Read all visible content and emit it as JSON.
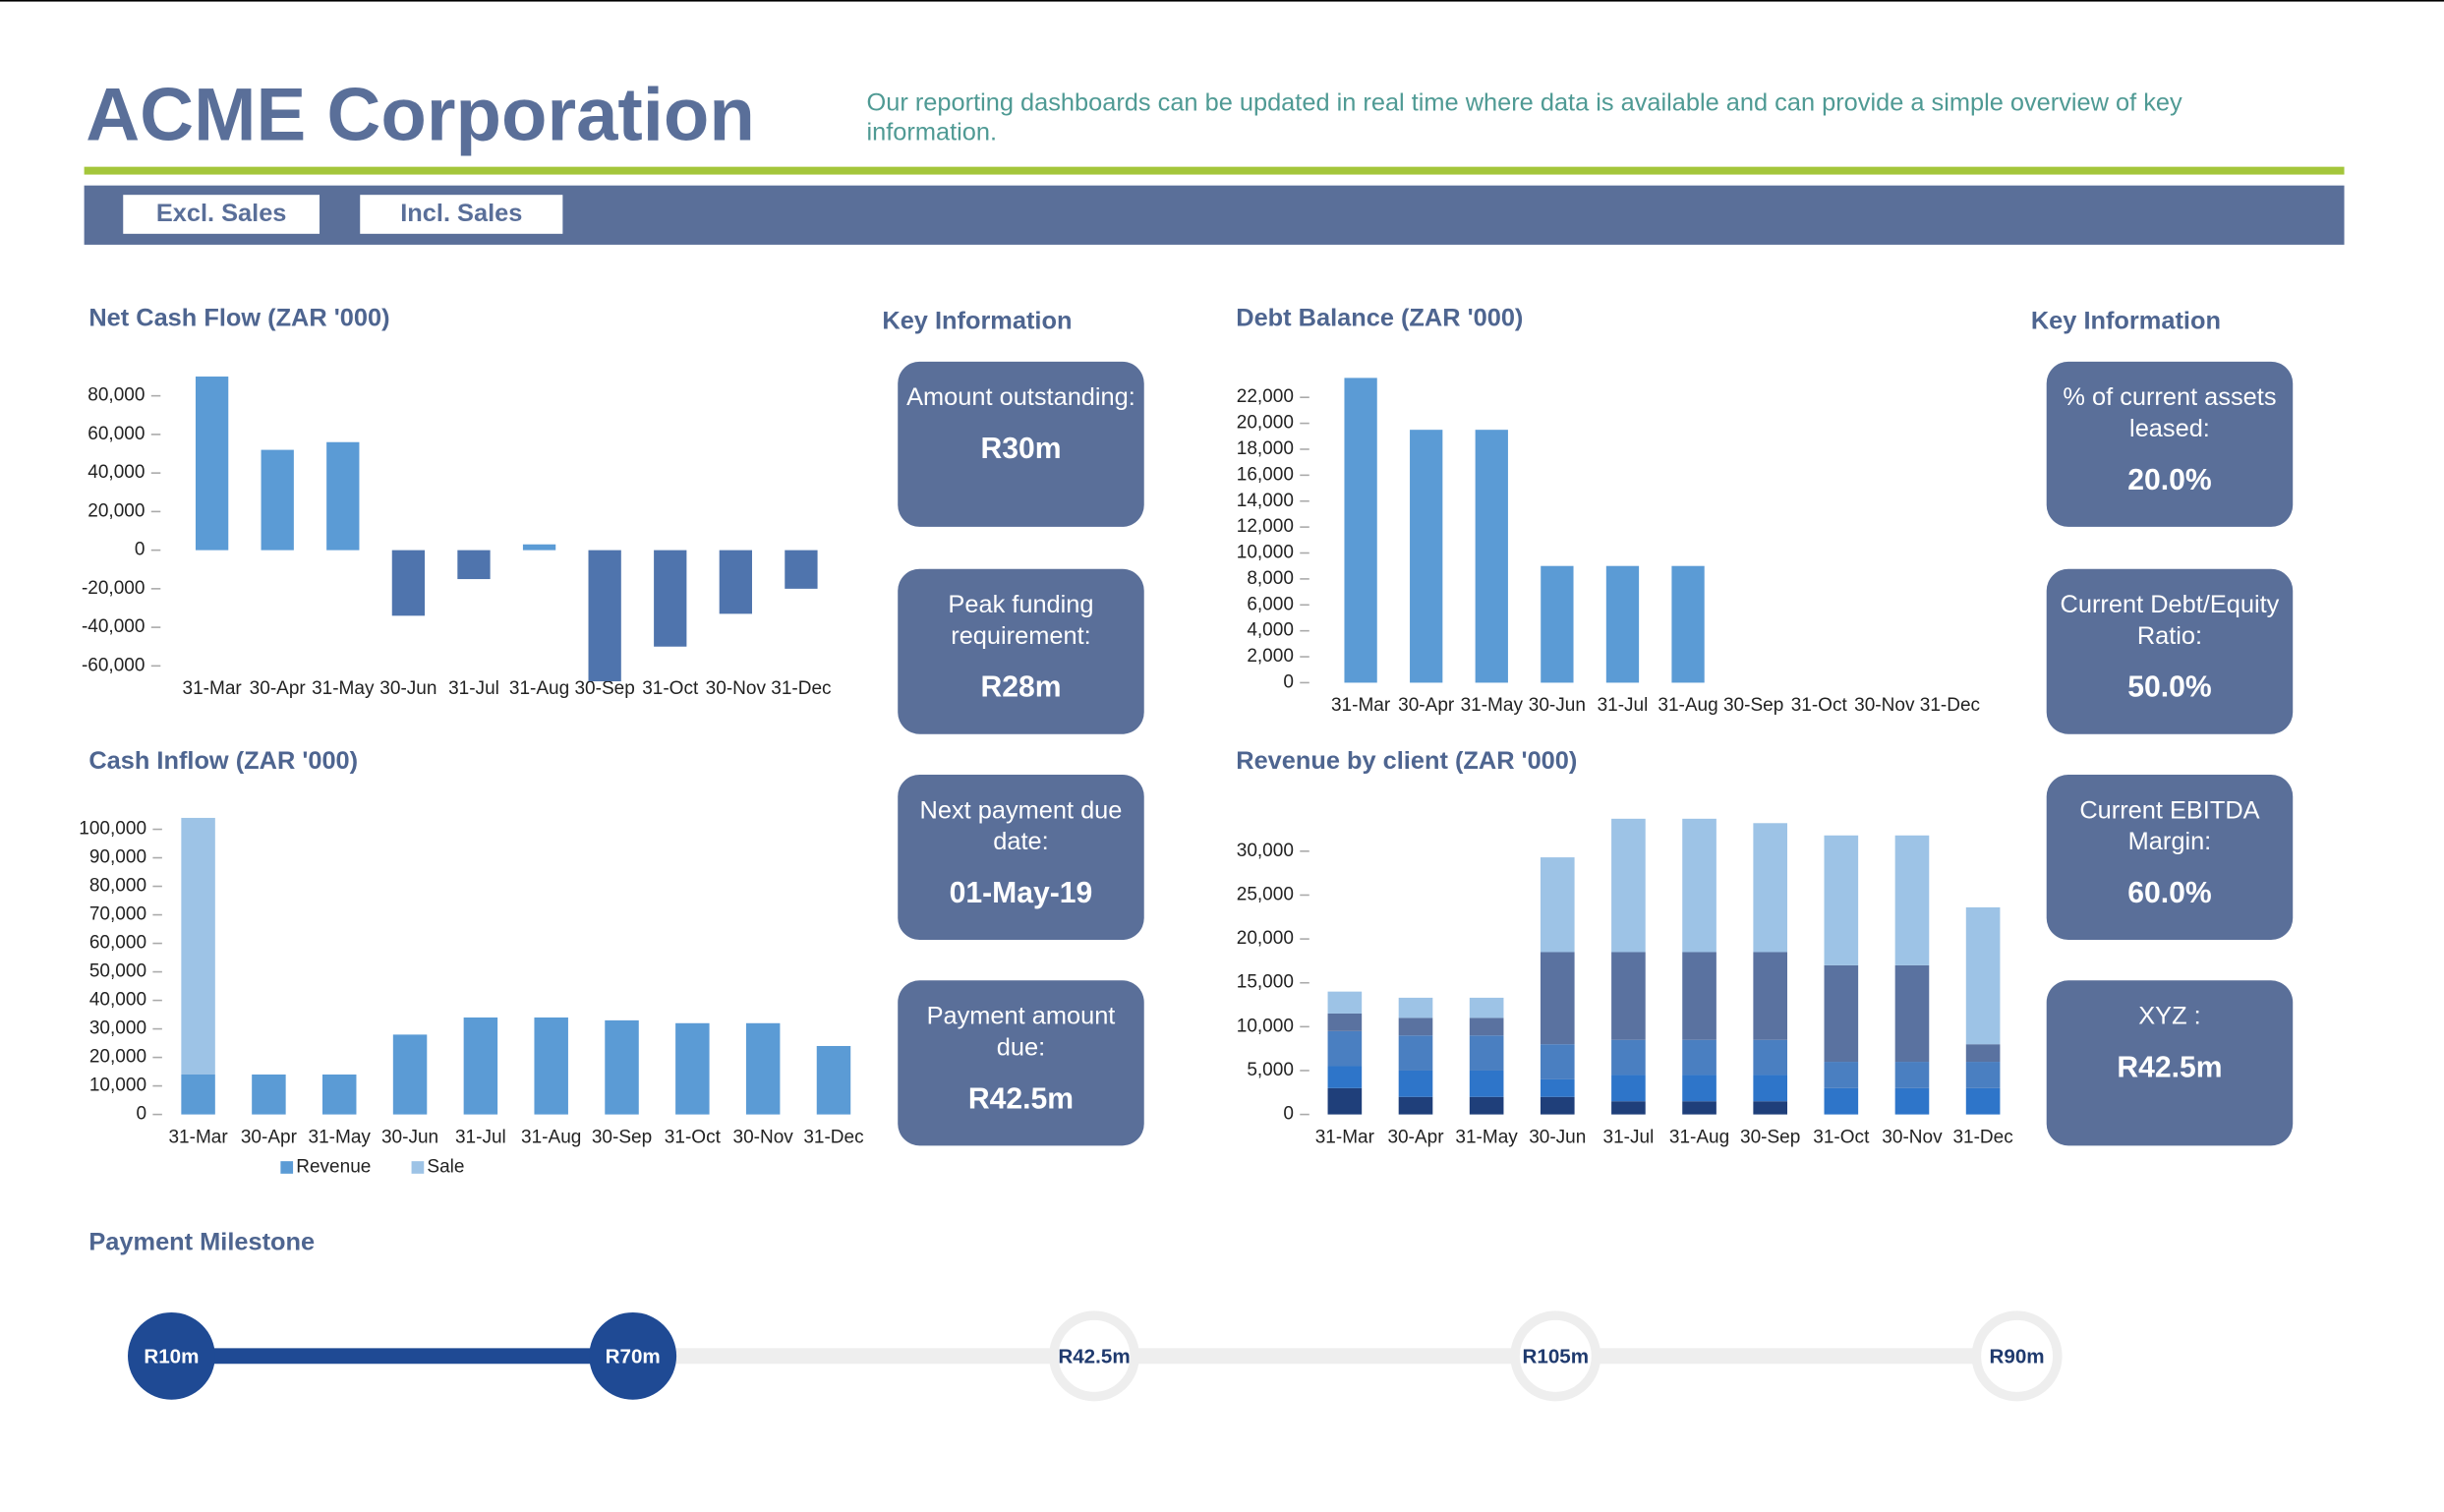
{
  "header": {
    "title": "ACME Corporation",
    "description": "Our reporting dashboards can be updated in real time where data is available and can provide a simple overview of key information.",
    "buttons": [
      "Excl. Sales",
      "Incl. Sales"
    ]
  },
  "chart_data": [
    {
      "type": "bar",
      "title": "Net Cash Flow (ZAR '000)",
      "categories": [
        "31-Mar",
        "30-Apr",
        "31-May",
        "30-Jun",
        "31-Jul",
        "31-Aug",
        "30-Sep",
        "31-Oct",
        "30-Nov",
        "31-Dec"
      ],
      "values": [
        90000,
        52000,
        56000,
        -34000,
        -15000,
        3000,
        -68000,
        -50000,
        -33000,
        -20000
      ],
      "color": "#5b9bd5",
      "negative_color": "#4f74ad",
      "ylim": [
        -70000,
        95000
      ],
      "yticks": [
        {
          "value": 80000,
          "label": "80,000"
        },
        {
          "value": 60000,
          "label": "60,000"
        },
        {
          "value": 40000,
          "label": "40,000"
        },
        {
          "value": 20000,
          "label": "20,000"
        },
        0,
        {
          "value": -20000,
          "label": "-20,000"
        },
        {
          "value": -40000,
          "label": "-40,000"
        },
        {
          "value": -60000,
          "label": "-60,000"
        }
      ]
    },
    {
      "type": "bar",
      "title": "Debt Balance (ZAR '000)",
      "categories": [
        "31-Mar",
        "30-Apr",
        "31-May",
        "30-Jun",
        "31-Jul",
        "31-Aug",
        "30-Sep",
        "31-Oct",
        "30-Nov",
        "31-Dec"
      ],
      "values": [
        23500,
        19500,
        19500,
        9000,
        9000,
        9000,
        0,
        0,
        0,
        0
      ],
      "color": "#5b9bd5",
      "ylim": [
        0,
        24000
      ],
      "yticks": [
        {
          "value": 22000,
          "label": "22,000"
        },
        {
          "value": 20000,
          "label": "20,000"
        },
        {
          "value": 18000,
          "label": "18,000"
        },
        {
          "value": 16000,
          "label": "16,000"
        },
        {
          "value": 14000,
          "label": "14,000"
        },
        {
          "value": 12000,
          "label": "12,000"
        },
        {
          "value": 10000,
          "label": "10,000"
        },
        {
          "value": 8000,
          "label": "8,000"
        },
        {
          "value": 6000,
          "label": "6,000"
        },
        {
          "value": 4000,
          "label": "4,000"
        },
        {
          "value": 2000,
          "label": "2,000"
        },
        0
      ]
    },
    {
      "type": "bar",
      "stacked": true,
      "legend": "bottom",
      "title": "Cash Inflow (ZAR '000)",
      "categories": [
        "31-Mar",
        "30-Apr",
        "31-May",
        "30-Jun",
        "31-Jul",
        "31-Aug",
        "30-Sep",
        "31-Oct",
        "30-Nov",
        "31-Dec"
      ],
      "series": [
        {
          "name": "Revenue",
          "color": "#5b9bd5",
          "values": [
            14000,
            14000,
            14000,
            28000,
            34000,
            34000,
            33000,
            32000,
            32000,
            24000
          ]
        },
        {
          "name": "Sale",
          "color": "#9dc3e6",
          "values": [
            90000,
            0,
            0,
            0,
            0,
            0,
            0,
            0,
            0,
            0
          ]
        }
      ],
      "ylim": [
        0,
        105000
      ],
      "yticks": [
        {
          "value": 100000,
          "label": "100,000"
        },
        {
          "value": 90000,
          "label": "90,000"
        },
        {
          "value": 80000,
          "label": "80,000"
        },
        {
          "value": 70000,
          "label": "70,000"
        },
        {
          "value": 60000,
          "label": "60,000"
        },
        {
          "value": 50000,
          "label": "50,000"
        },
        {
          "value": 40000,
          "label": "40,000"
        },
        {
          "value": 30000,
          "label": "30,000"
        },
        {
          "value": 20000,
          "label": "20,000"
        },
        {
          "value": 10000,
          "label": "10,000"
        },
        0
      ]
    },
    {
      "type": "bar",
      "stacked": true,
      "title": "Revenue by client (ZAR '000)",
      "categories": [
        "31-Mar",
        "30-Apr",
        "31-May",
        "30-Jun",
        "31-Jul",
        "31-Aug",
        "30-Sep",
        "31-Oct",
        "30-Nov",
        "31-Dec"
      ],
      "series": [
        {
          "color": "#1f3f7a",
          "values": [
            3000,
            2000,
            2000,
            2000,
            1500,
            1500,
            1500,
            0,
            0,
            0
          ]
        },
        {
          "color": "#2e75c9",
          "values": [
            2500,
            3000,
            3000,
            2000,
            3000,
            3000,
            3000,
            3000,
            3000,
            3000
          ]
        },
        {
          "color": "#4a7fc1",
          "values": [
            4000,
            4000,
            4000,
            4000,
            4000,
            4000,
            4000,
            3000,
            3000,
            3000
          ]
        },
        {
          "color": "#5a72a0",
          "values": [
            2000,
            2000,
            2000,
            10500,
            10000,
            10000,
            10000,
            11000,
            11000,
            2000
          ]
        },
        {
          "color": "#9dc3e6",
          "values": [
            2500,
            2300,
            2300,
            10800,
            15200,
            15200,
            14700,
            14800,
            14800,
            15600
          ]
        }
      ],
      "ylim": [
        0,
        34000
      ],
      "yticks": [
        {
          "value": 30000,
          "label": "30,000"
        },
        {
          "value": 25000,
          "label": "25,000"
        },
        {
          "value": 20000,
          "label": "20,000"
        },
        {
          "value": 15000,
          "label": "15,000"
        },
        {
          "value": 10000,
          "label": "10,000"
        },
        {
          "value": 5000,
          "label": "5,000"
        },
        0
      ]
    }
  ],
  "key_information": {
    "left": {
      "title": "Key Information",
      "cards": [
        {
          "label": "Amount outstanding:",
          "value": "R30m"
        },
        {
          "label": "Peak funding requirement:",
          "value": "R28m"
        },
        {
          "label": "Next payment due date:",
          "value": "01-May-19"
        },
        {
          "label": "Payment amount due:",
          "value": "R42.5m"
        }
      ]
    },
    "right": {
      "title": "Key Information",
      "cards": [
        {
          "label": "% of current assets leased:",
          "value": "20.0%"
        },
        {
          "label": "Current Debt/Equity Ratio:",
          "value": "50.0%"
        },
        {
          "label": "Current EBITDA Margin:",
          "value": "60.0%"
        },
        {
          "label": "XYZ :",
          "value": "R42.5m"
        }
      ]
    }
  },
  "payment_milestone": {
    "title": "Payment Milestone",
    "done_color": "#1f4a94",
    "pending_color": "#eeeeee",
    "milestones": [
      {
        "label": "R10m",
        "done": true
      },
      {
        "label": "R70m",
        "done": true
      },
      {
        "label": "R42.5m",
        "done": false
      },
      {
        "label": "R105m",
        "done": false
      },
      {
        "label": "R90m",
        "done": false
      }
    ]
  }
}
